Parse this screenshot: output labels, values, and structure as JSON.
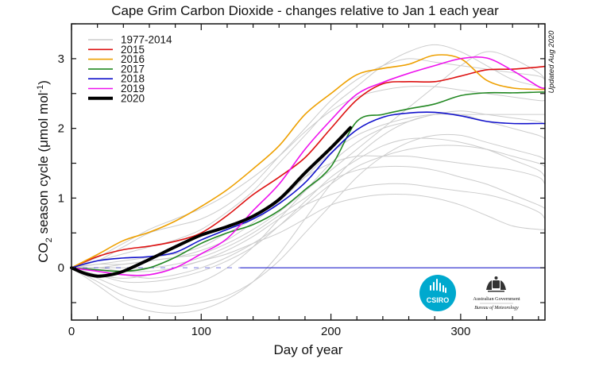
{
  "chart_data": {
    "type": "line",
    "title": "Cape Grim Carbon Dioxide - changes relative to Jan 1 each year",
    "xlabel": "Day of year",
    "ylabel": {
      "main": "CO",
      "sub": "2",
      "rest": " season cycle (μmol mol",
      "sup": "-1",
      "end": ")"
    },
    "xlim": [
      0,
      365
    ],
    "ylim": [
      -0.75,
      3.5
    ],
    "xticks": [
      0,
      100,
      200,
      300
    ],
    "yticks": [
      0,
      1,
      2,
      3
    ],
    "grid": false,
    "legend_position": "top-left",
    "annotation": "Updated Aug 2020",
    "x": [
      0,
      20,
      40,
      60,
      80,
      100,
      120,
      140,
      160,
      180,
      200,
      220,
      240,
      260,
      280,
      300,
      320,
      340,
      360,
      365
    ],
    "series": [
      {
        "name": "1977-2014",
        "color": "#cccccc",
        "width": 1,
        "values_set": [
          [
            0,
            0.1,
            0.3,
            0.5,
            0.6,
            0.7,
            0.9,
            1.2,
            1.6,
            2.0,
            2.4,
            2.7,
            2.9,
            3.0,
            2.95,
            2.9,
            2.85,
            2.8,
            2.75,
            2.7
          ],
          [
            0,
            -0.2,
            -0.4,
            -0.5,
            -0.55,
            -0.5,
            -0.4,
            -0.2,
            0.1,
            0.5,
            0.9,
            1.3,
            1.6,
            1.8,
            1.9,
            1.9,
            1.8,
            1.7,
            1.6,
            1.55
          ],
          [
            0,
            -0.15,
            -0.3,
            -0.35,
            -0.3,
            -0.2,
            0.0,
            0.3,
            0.7,
            1.1,
            1.5,
            1.8,
            2.0,
            2.1,
            2.2,
            2.2,
            2.1,
            2.0,
            1.9,
            1.85
          ],
          [
            0,
            0.05,
            0.1,
            0.15,
            0.2,
            0.3,
            0.5,
            0.7,
            1.0,
            1.3,
            1.5,
            1.6,
            1.6,
            1.6,
            1.55,
            1.5,
            1.45,
            1.4,
            1.3,
            1.2
          ],
          [
            0,
            0,
            -0.05,
            -0.05,
            0,
            0.1,
            0.25,
            0.45,
            0.7,
            0.9,
            1.05,
            1.15,
            1.2,
            1.2,
            1.15,
            1.1,
            1.05,
            0.95,
            0.8,
            0.7
          ],
          [
            0,
            0.1,
            0.2,
            0.3,
            0.4,
            0.55,
            0.8,
            1.1,
            1.5,
            1.9,
            2.3,
            2.6,
            2.9,
            3.1,
            3.2,
            3.1,
            2.9,
            2.7,
            2.6,
            2.55
          ],
          [
            0,
            -0.05,
            -0.1,
            -0.15,
            -0.1,
            0,
            0.15,
            0.35,
            0.6,
            0.9,
            1.2,
            1.45,
            1.6,
            1.7,
            1.75,
            1.75,
            1.7,
            1.6,
            1.5,
            1.45
          ],
          [
            0,
            -0.25,
            -0.5,
            -0.62,
            -0.65,
            -0.6,
            -0.45,
            -0.2,
            0.2,
            0.7,
            1.2,
            1.6,
            1.9,
            2.1,
            2.2,
            2.25,
            2.2,
            2.15,
            2.1,
            2.05
          ],
          [
            0,
            0.05,
            0.05,
            0.1,
            0.15,
            0.25,
            0.4,
            0.65,
            0.95,
            1.3,
            1.65,
            1.9,
            2.05,
            2.15,
            2.2,
            2.2,
            2.2,
            2.2,
            2.2,
            2.2
          ],
          [
            0,
            0,
            0,
            0,
            0.05,
            0.15,
            0.3,
            0.5,
            0.75,
            1.0,
            1.25,
            1.4,
            1.45,
            1.45,
            1.4,
            1.3,
            1.2,
            1.05,
            0.9,
            0.85
          ],
          [
            0,
            0.15,
            0.35,
            0.55,
            0.7,
            0.85,
            1.05,
            1.3,
            1.6,
            1.95,
            2.25,
            2.45,
            2.55,
            2.6,
            2.6,
            2.55,
            2.5,
            2.45,
            2.4,
            2.4
          ],
          [
            0,
            -0.1,
            -0.2,
            -0.2,
            -0.15,
            -0.05,
            0.1,
            0.3,
            0.6,
            0.95,
            1.3,
            1.55,
            1.75,
            1.85,
            1.85,
            1.8,
            1.7,
            1.55,
            1.4,
            1.3
          ],
          [
            0,
            0,
            0.05,
            0.1,
            0.15,
            0.2,
            0.35,
            0.55,
            0.8,
            1.1,
            1.4,
            1.7,
            2.0,
            2.3,
            2.6,
            2.9,
            3.1,
            3.0,
            2.8,
            2.7
          ],
          [
            0,
            -0.1,
            -0.15,
            -0.1,
            0,
            0.1,
            0.2,
            0.35,
            0.5,
            0.7,
            0.9,
            1.0,
            1.05,
            1.05,
            1.0,
            0.9,
            0.75,
            0.6,
            0.55,
            0.55
          ]
        ]
      },
      {
        "name": "2015",
        "color": "#dd1111",
        "width": 1.6,
        "values": [
          0,
          0.16,
          0.26,
          0.31,
          0.38,
          0.5,
          0.75,
          1.05,
          1.3,
          1.58,
          2.0,
          2.41,
          2.64,
          2.67,
          2.67,
          2.75,
          2.84,
          2.85,
          2.88,
          2.89
        ]
      },
      {
        "name": "2016",
        "color": "#eea000",
        "width": 1.6,
        "values": [
          0,
          0.19,
          0.39,
          0.51,
          0.67,
          0.88,
          1.12,
          1.42,
          1.75,
          2.2,
          2.5,
          2.77,
          2.86,
          2.92,
          3.05,
          3.0,
          2.69,
          2.58,
          2.56,
          2.56
        ]
      },
      {
        "name": "2017",
        "color": "#228822",
        "width": 1.6,
        "values": [
          0,
          -0.03,
          -0.05,
          0.0,
          0.15,
          0.35,
          0.5,
          0.62,
          0.82,
          1.12,
          1.45,
          2.1,
          2.2,
          2.28,
          2.35,
          2.47,
          2.51,
          2.51,
          2.52,
          2.52
        ]
      },
      {
        "name": "2018",
        "color": "#1111cc",
        "width": 1.6,
        "values": [
          0,
          0.1,
          0.14,
          0.16,
          0.22,
          0.4,
          0.55,
          0.7,
          0.92,
          1.22,
          1.64,
          1.98,
          2.16,
          2.22,
          2.23,
          2.18,
          2.1,
          2.07,
          2.07,
          2.07
        ]
      },
      {
        "name": "2019",
        "color": "#ee11ee",
        "width": 1.6,
        "values": [
          0,
          -0.05,
          -0.1,
          -0.1,
          0.0,
          0.2,
          0.42,
          0.82,
          1.2,
          1.7,
          2.12,
          2.49,
          2.66,
          2.79,
          2.9,
          3.0,
          3.01,
          2.83,
          2.6,
          2.58
        ]
      },
      {
        "name": "2020",
        "color": "#000000",
        "width": 4,
        "x": [
          0,
          10,
          20,
          30,
          40,
          60,
          80,
          100,
          120,
          140,
          160,
          180,
          200,
          215
        ],
        "values": [
          0,
          -0.08,
          -0.12,
          -0.1,
          -0.05,
          0.12,
          0.3,
          0.47,
          0.59,
          0.74,
          0.98,
          1.36,
          1.72,
          2.01
        ]
      }
    ]
  },
  "logos": {
    "csiro": {
      "text": "CSIRO",
      "color": "#00a9ce"
    },
    "bom": {
      "line1": "Australian Government",
      "line2": "Bureau of Meteorology"
    }
  }
}
